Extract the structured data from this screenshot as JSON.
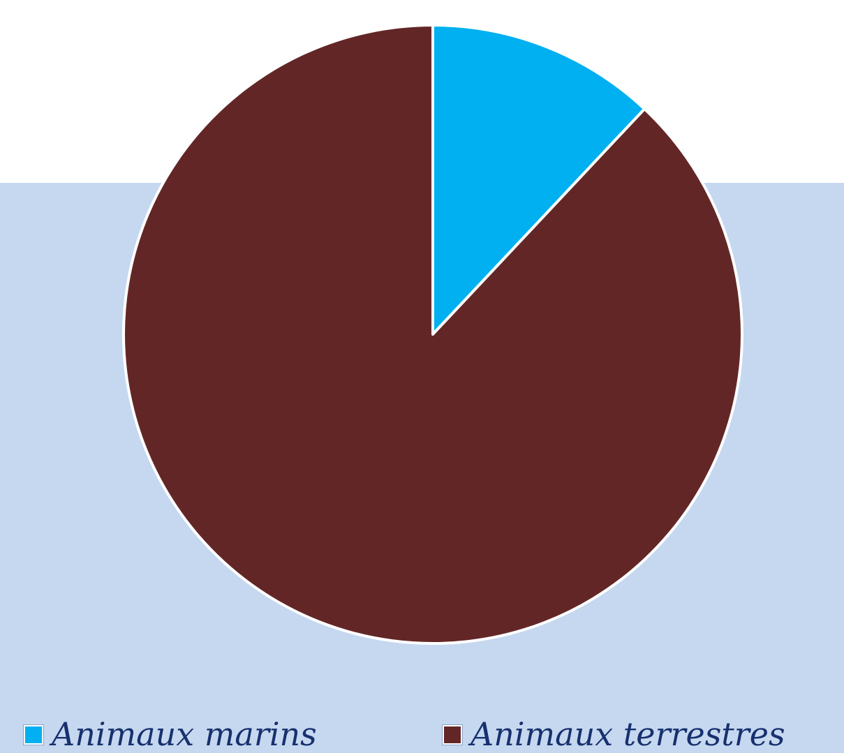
{
  "chart_data": {
    "type": "pie",
    "title": "",
    "categories": [
      "Animaux marins",
      "Animaux terrestres"
    ],
    "values": [
      12,
      88
    ],
    "colors": [
      "#00b0f0",
      "#632626"
    ],
    "start_angle_deg": 0,
    "direction": "clockwise",
    "legend_position": "bottom"
  },
  "colors": {
    "background": "#ffffff",
    "band": "#c6d8f0",
    "legend_text": "#17306e",
    "slice_border": "#ffffff"
  }
}
